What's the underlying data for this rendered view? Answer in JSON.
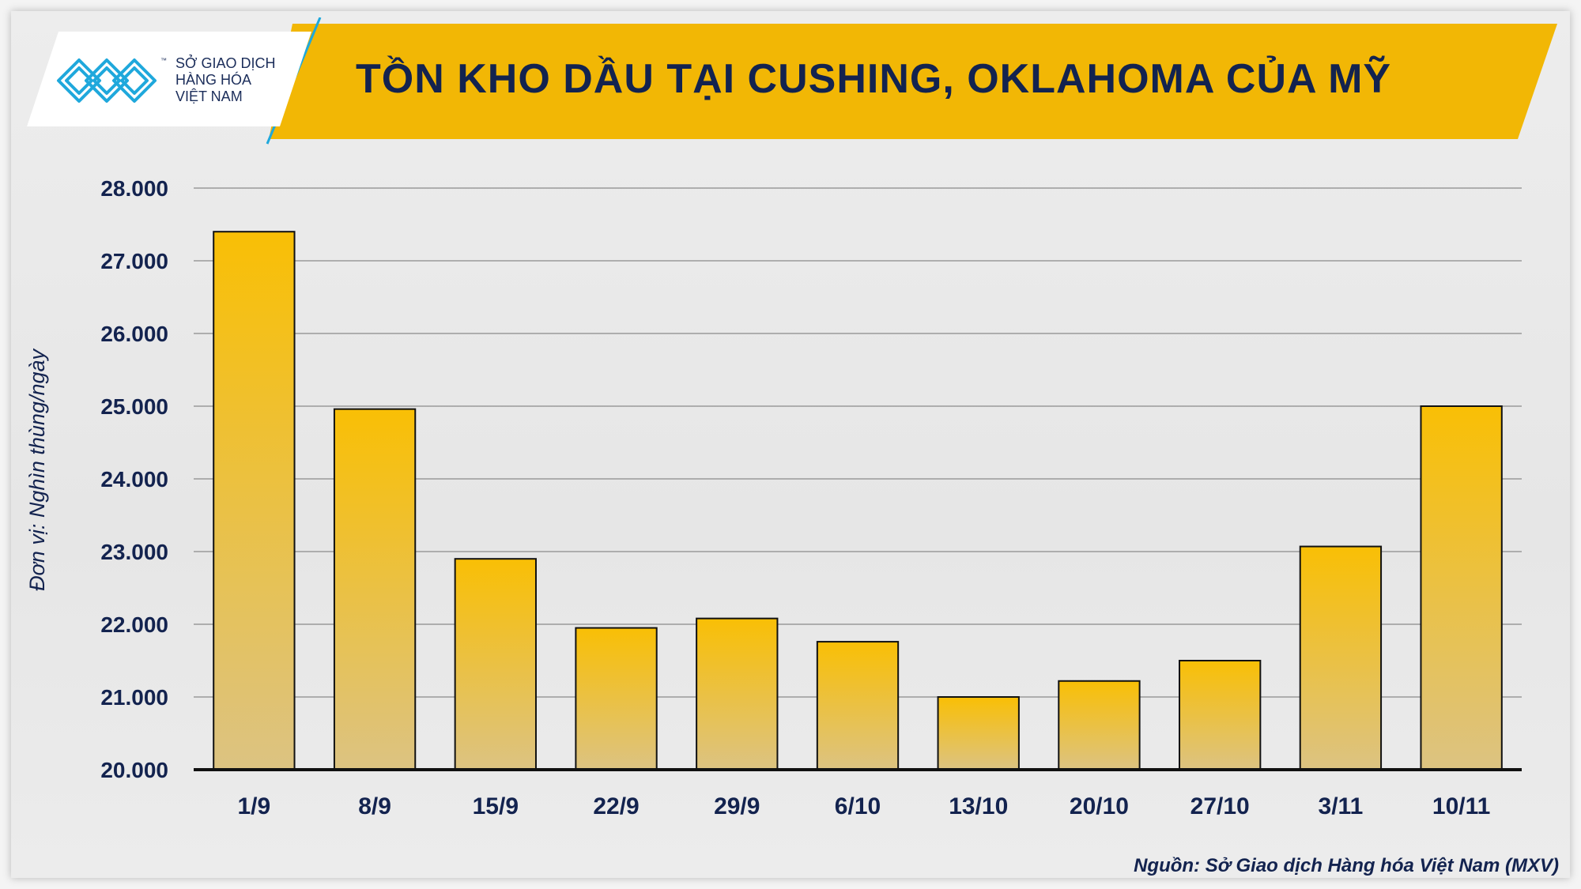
{
  "brand": {
    "line1": "SỞ GIAO DỊCH",
    "line2": "HÀNG HÓA",
    "line3": "VIỆT NAM",
    "tm": "™",
    "logo_icon": "mxv-logo-icon"
  },
  "colors": {
    "accent": "#f2b705",
    "title_text": "#13234f",
    "bar_top": "#f9bf05",
    "bar_bottom": "#dcc382",
    "logo_blue": "#1fa8dc"
  },
  "chart_data": {
    "type": "bar",
    "title": "TỒN KHO DẦU TẠI CUSHING, OKLAHOMA CỦA MỸ",
    "ylabel": "Đơn vị: Nghìn thùng/ngày",
    "xlabel": "",
    "ylim": [
      20000,
      28000
    ],
    "yticks": [
      "20.000",
      "21.000",
      "22.000",
      "23.000",
      "24.000",
      "25.000",
      "26.000",
      "27.000",
      "28.000"
    ],
    "ytick_values": [
      20000,
      21000,
      22000,
      23000,
      24000,
      25000,
      26000,
      27000,
      28000
    ],
    "categories": [
      "1/9",
      "8/9",
      "15/9",
      "22/9",
      "29/9",
      "6/10",
      "13/10",
      "20/10",
      "27/10",
      "3/11",
      "10/11"
    ],
    "values": [
      27400,
      24960,
      22900,
      21950,
      22080,
      21760,
      21000,
      21220,
      21500,
      23070,
      25000
    ],
    "grid": true,
    "legend": "none"
  },
  "source": "Nguồn: Sở Giao dịch Hàng hóa Việt Nam (MXV)"
}
